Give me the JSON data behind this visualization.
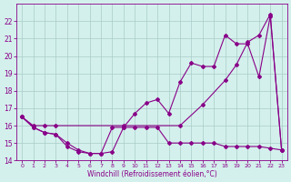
{
  "xlabel": "Windchill (Refroidissement éolien,°C)",
  "background_color": "#d4f0ec",
  "grid_color": "#a8ccc8",
  "line_color": "#880088",
  "xlim_min": -0.5,
  "xlim_max": 23.5,
  "ylim_min": 14,
  "ylim_max": 23,
  "xticks": [
    0,
    1,
    2,
    3,
    4,
    5,
    6,
    7,
    8,
    9,
    10,
    11,
    12,
    13,
    14,
    15,
    16,
    17,
    18,
    19,
    20,
    21,
    22,
    23
  ],
  "yticks": [
    14,
    15,
    16,
    17,
    18,
    19,
    20,
    21,
    22
  ],
  "series1_x": [
    0,
    1,
    2,
    3,
    4,
    5,
    6,
    7,
    8,
    9,
    10,
    11,
    12,
    13,
    14,
    15,
    16,
    17,
    18,
    19,
    20,
    21,
    22,
    23
  ],
  "series1_y": [
    16.5,
    15.9,
    15.6,
    15.5,
    15.0,
    14.6,
    14.4,
    14.4,
    15.9,
    15.9,
    15.9,
    15.9,
    15.9,
    15.0,
    15.0,
    15.0,
    15.0,
    15.0,
    14.8,
    14.8,
    14.8,
    14.8,
    14.7,
    14.6
  ],
  "series2_x": [
    0,
    1,
    2,
    3,
    4,
    5,
    6,
    7,
    8,
    9,
    10,
    11,
    12,
    13,
    14,
    15,
    16,
    17,
    18,
    19,
    20,
    21,
    22,
    23
  ],
  "series2_y": [
    16.5,
    15.9,
    15.6,
    15.5,
    14.8,
    14.5,
    14.4,
    14.4,
    14.5,
    15.9,
    16.7,
    17.3,
    17.5,
    16.7,
    18.5,
    19.6,
    19.4,
    19.4,
    21.2,
    20.7,
    20.7,
    18.8,
    22.3,
    14.6
  ],
  "series3_x": [
    0,
    1,
    2,
    3,
    9,
    14,
    16,
    18,
    19,
    20,
    21,
    22,
    23
  ],
  "series3_y": [
    16.5,
    16.0,
    16.0,
    16.0,
    16.0,
    16.0,
    17.2,
    18.6,
    19.5,
    20.8,
    21.2,
    22.4,
    14.6
  ]
}
